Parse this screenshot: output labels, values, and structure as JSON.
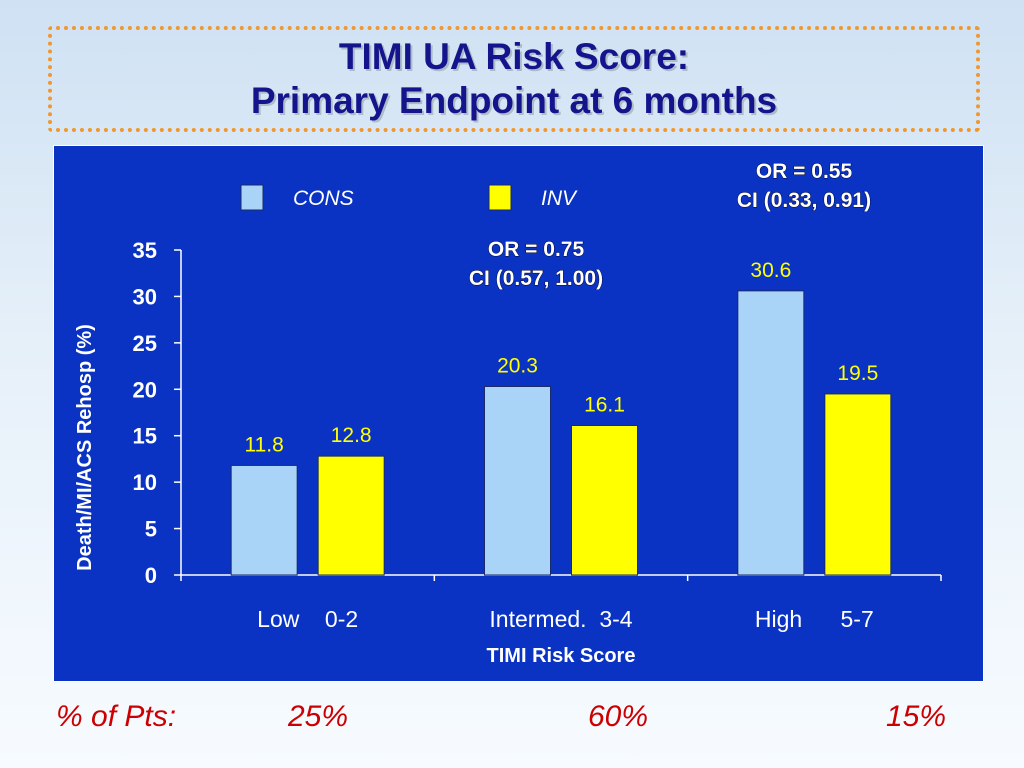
{
  "slide": {
    "title_line1": "TIMI UA Risk Score:",
    "title_line2": "Primary Endpoint at 6 months"
  },
  "legend": [
    {
      "label": "CONS",
      "color": "#a9d3f7"
    },
    {
      "label": "INV",
      "color": "#ffff00"
    }
  ],
  "annotations": [
    {
      "line1": "OR = 0.75",
      "line2": "CI (0.57, 1.00)"
    },
    {
      "line1": "OR = 0.55",
      "line2": "CI (0.33, 0.91)"
    }
  ],
  "pts": {
    "label": "% of Pts:",
    "values": [
      "25%",
      "60%",
      "15%"
    ]
  },
  "chart_data": {
    "type": "bar",
    "categories": [
      "Low    0-2",
      "Intermed.  3-4",
      "High      5-7"
    ],
    "series": [
      {
        "name": "CONS",
        "values": [
          11.8,
          20.3,
          30.6
        ],
        "color": "#a9d3f7"
      },
      {
        "name": "INV",
        "values": [
          12.8,
          16.1,
          19.5
        ],
        "color": "#ffff00"
      }
    ],
    "xlabel": "TIMI Risk Score",
    "ylabel": "Death/MI/ACS Rehosp (%)",
    "ylim": [
      0,
      35
    ],
    "yticks": [
      0,
      5,
      10,
      15,
      20,
      25,
      30,
      35
    ],
    "grid": false,
    "legend_position": "top",
    "colors": {
      "panel": "#0a33c4",
      "text": "#ffffff",
      "cons_label": "#ffff00",
      "inv_label": "#ffff00"
    }
  }
}
